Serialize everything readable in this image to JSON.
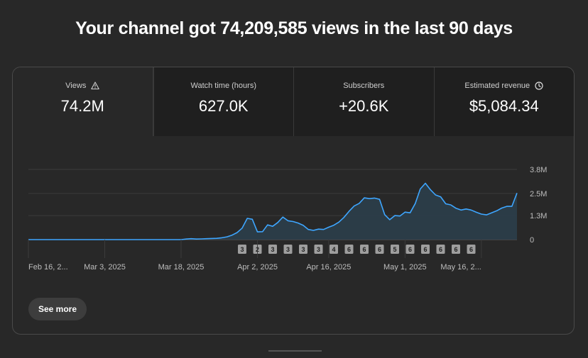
{
  "headline": "Your channel got 74,209,585 views in the last 90 days",
  "tabs": [
    {
      "label": "Views",
      "value": "74.2M",
      "icon": "warning-icon"
    },
    {
      "label": "Watch time (hours)",
      "value": "627.0K"
    },
    {
      "label": "Subscribers",
      "value": "+20.6K"
    },
    {
      "label": "Estimated revenue",
      "value": "$5,084.34",
      "icon": "clock-icon"
    }
  ],
  "see_more_label": "See more",
  "colors": {
    "line": "#3ea6ff",
    "area": "#2b3e4a",
    "background": "#282828"
  },
  "chart_data": {
    "type": "area",
    "title": "Views",
    "ylim": [
      0,
      3800000
    ],
    "yticks": [
      {
        "value": 3800000,
        "label": "3.8M"
      },
      {
        "value": 2500000,
        "label": "2.5M"
      },
      {
        "value": 1300000,
        "label": "1.3M"
      },
      {
        "value": 0,
        "label": "0"
      }
    ],
    "xticks": [
      {
        "day": 0,
        "label": "Feb 16, 2..."
      },
      {
        "day": 15,
        "label": "Mar 3, 2025"
      },
      {
        "day": 30,
        "label": "Mar 18, 2025"
      },
      {
        "day": 45,
        "label": "Apr 2, 2025"
      },
      {
        "day": 59,
        "label": "Apr 16, 2025"
      },
      {
        "day": 74,
        "label": "May 1, 2025"
      },
      {
        "day": 89,
        "label": "May 16, 2..."
      }
    ],
    "series": [
      {
        "name": "Views",
        "x_start_label": "Feb 16, 2025",
        "values": [
          0,
          0,
          0,
          0,
          0,
          0,
          0,
          0,
          0,
          0,
          0,
          0,
          0,
          0,
          0,
          0,
          0,
          0,
          0,
          0,
          0,
          0,
          0,
          0,
          0,
          0,
          0,
          0,
          0,
          0,
          0,
          30000,
          50000,
          30000,
          40000,
          50000,
          60000,
          70000,
          100000,
          150000,
          240000,
          380000,
          620000,
          1150000,
          1100000,
          420000,
          430000,
          800000,
          720000,
          930000,
          1220000,
          1020000,
          980000,
          900000,
          770000,
          550000,
          500000,
          570000,
          550000,
          670000,
          780000,
          950000,
          1200000,
          1530000,
          1820000,
          1960000,
          2260000,
          2220000,
          2250000,
          2180000,
          1350000,
          1080000,
          1300000,
          1280000,
          1490000,
          1450000,
          1950000,
          2740000,
          3050000,
          2700000,
          2420000,
          2320000,
          1940000,
          1880000,
          1700000,
          1600000,
          1660000,
          1600000,
          1480000,
          1380000,
          1340000,
          1450000,
          1560000,
          1710000,
          1800000,
          1800000,
          2520000
        ]
      }
    ],
    "annotations": [
      {
        "day": 42,
        "label": "3"
      },
      {
        "day": 45,
        "label": "2"
      },
      {
        "day": 48,
        "label": "3"
      },
      {
        "day": 51,
        "label": "3"
      },
      {
        "day": 54,
        "label": "3"
      },
      {
        "day": 57,
        "label": "3"
      },
      {
        "day": 60,
        "label": "4"
      },
      {
        "day": 63,
        "label": "6"
      },
      {
        "day": 66,
        "label": "6"
      },
      {
        "day": 69,
        "label": "6"
      },
      {
        "day": 72,
        "label": "5"
      },
      {
        "day": 75,
        "label": "6"
      },
      {
        "day": 78,
        "label": "6"
      },
      {
        "day": 81,
        "label": "6"
      },
      {
        "day": 84,
        "label": "6"
      },
      {
        "day": 87,
        "label": "6"
      }
    ]
  }
}
